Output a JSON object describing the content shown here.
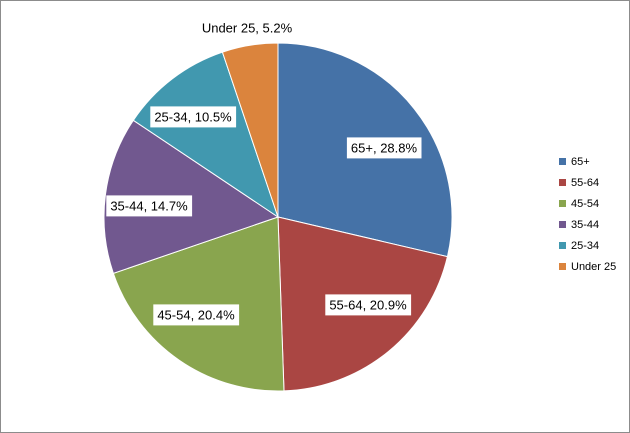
{
  "chart_data": {
    "type": "pie",
    "title": "",
    "categories": [
      "65+",
      "55-64",
      "45-54",
      "35-44",
      "25-34",
      "Under 25"
    ],
    "values": [
      28.8,
      20.9,
      20.4,
      14.7,
      10.5,
      5.2
    ],
    "unit": "%",
    "colors": [
      "#4572A7",
      "#AA4643",
      "#89A54E",
      "#71588F",
      "#4198AF",
      "#DB843D"
    ],
    "data_labels": [
      "65+, 28.8%",
      "55-64, 20.9%",
      "45-54, 20.4%",
      "35-44, 14.7%",
      "25-34, 10.5%",
      "Under 25, 5.2%"
    ],
    "legend_position": "right",
    "start_angle_deg": 0,
    "direction": "clockwise"
  }
}
